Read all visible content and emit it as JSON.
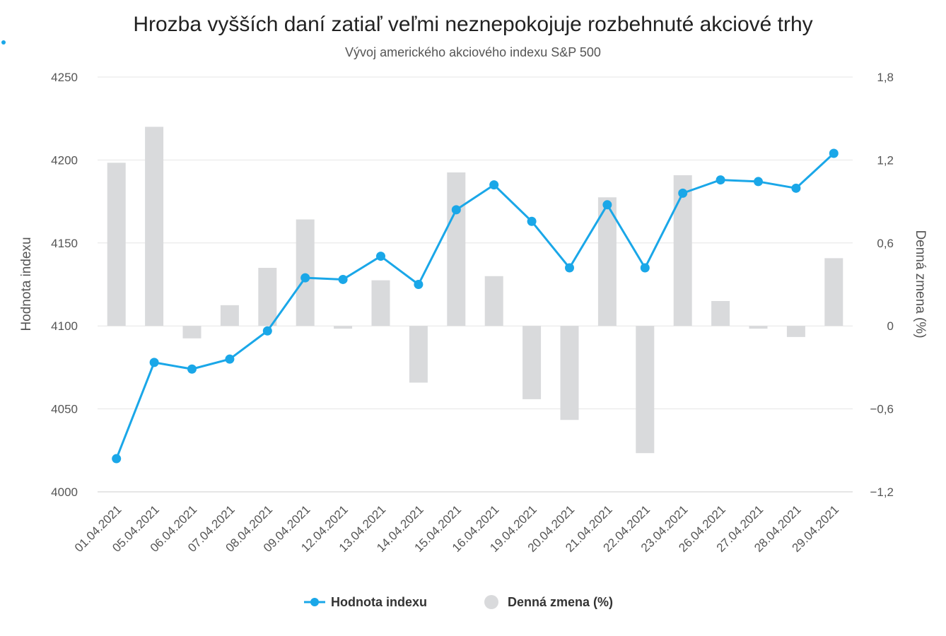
{
  "chart_data": {
    "type": "line+bar",
    "title": "Hrozba vyšších daní zatiaľ veľmi neznepokojuje rozbehnuté akciové trhy",
    "subtitle": "Vývoj amerického akciového indexu S&P 500",
    "categories": [
      "01.04.2021",
      "05.04.2021",
      "06.04.2021",
      "07.04.2021",
      "08.04.2021",
      "09.04.2021",
      "12.04.2021",
      "13.04.2021",
      "14.04.2021",
      "15.04.2021",
      "16.04.2021",
      "19.04.2021",
      "20.04.2021",
      "21.04.2021",
      "22.04.2021",
      "23.04.2021",
      "26.04.2021",
      "27.04.2021",
      "28.04.2021",
      "29.04.2021"
    ],
    "series": [
      {
        "name": "Hodnota indexu",
        "type": "line",
        "axis": "left",
        "color": "#1aa7e8",
        "values": [
          4020,
          4078,
          4074,
          4080,
          4097,
          4129,
          4128,
          4142,
          4125,
          4170,
          4185,
          4163,
          4135,
          4173,
          4135,
          4180,
          4188,
          4187,
          4183,
          4204
        ]
      },
      {
        "name": "Denná zmena (%)",
        "type": "bar",
        "axis": "right",
        "color": "#d9dadc",
        "values": [
          1.18,
          1.44,
          -0.09,
          0.15,
          0.42,
          0.77,
          -0.02,
          0.33,
          -0.41,
          1.11,
          0.36,
          -0.53,
          -0.68,
          0.93,
          -0.92,
          1.09,
          0.18,
          -0.02,
          -0.08,
          0.49
        ]
      }
    ],
    "y_left": {
      "label": "Hodnota indexu",
      "min": 4000,
      "max": 4250,
      "ticks": [
        "4000",
        "4050",
        "4100",
        "4150",
        "4200",
        "4250"
      ]
    },
    "y_right": {
      "label": "Denná zmena (%)",
      "min": -1.2,
      "max": 1.8,
      "ticks": [
        "−1,2",
        "−0,6",
        "0",
        "0,6",
        "1,2",
        "1,8"
      ]
    },
    "grid": true,
    "legend_position": "bottom-center"
  }
}
